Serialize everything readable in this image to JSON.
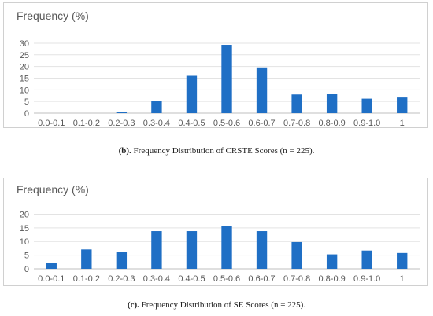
{
  "chart_data": [
    {
      "type": "bar",
      "ylabel": "Frequency (%)",
      "categories": [
        "0.0-0.1",
        "0.1-0.2",
        "0.2-0.3",
        "0.3-0.4",
        "0.4-0.5",
        "0.5-0.6",
        "0.6-0.7",
        "0.7-0.8",
        "0.8-0.9",
        "0.9-1.0",
        "1"
      ],
      "values": [
        0,
        0,
        0.4,
        5.3,
        16,
        29.3,
        19.6,
        8,
        8.4,
        6.2,
        6.7
      ],
      "yticks": [
        0,
        5,
        10,
        15,
        20,
        25,
        30
      ],
      "ylim": [
        0,
        32
      ],
      "grid": true,
      "bar_color": "#1f6fc5",
      "caption_label": "(b).",
      "caption_text": "Frequency Distribution of CRSTE Scores (n = 225)."
    },
    {
      "type": "bar",
      "ylabel": "Frequency (%)",
      "categories": [
        "0.0-0.1",
        "0.1-0.2",
        "0.2-0.3",
        "0.3-0.4",
        "0.4-0.5",
        "0.5-0.6",
        "0.6-0.7",
        "0.7-0.8",
        "0.8-0.9",
        "0.9-1.0",
        "1"
      ],
      "values": [
        2.2,
        7.1,
        6.2,
        13.8,
        13.8,
        15.6,
        13.8,
        9.8,
        5.3,
        6.7,
        5.8
      ],
      "yticks": [
        0,
        5,
        10,
        15,
        20
      ],
      "ylim": [
        0,
        21
      ],
      "grid": true,
      "bar_color": "#1f6fc5",
      "caption_label": "(c).",
      "caption_text": "Frequency Distribution of SE Scores (n = 225)."
    }
  ]
}
